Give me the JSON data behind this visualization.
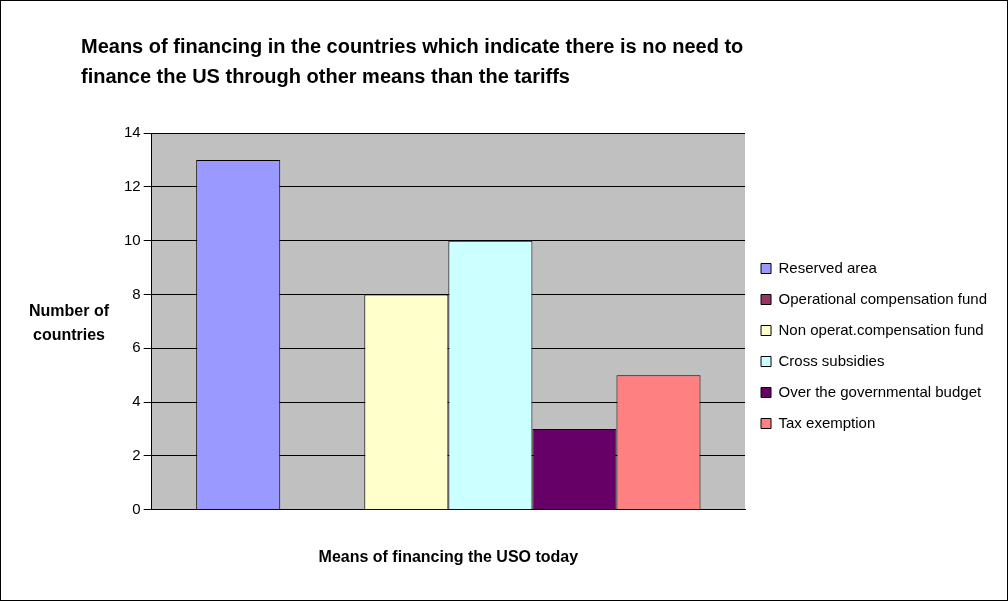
{
  "chart_data": {
    "type": "bar",
    "title": "Means of financing in the countries which indicate there is no need to finance the US through other means than the tariffs",
    "xlabel": "Means of financing the USO today",
    "ylabel": "Number of countries",
    "categories": [
      null
    ],
    "series": [
      {
        "name": "Reserved area",
        "color": "#9999ff",
        "values": [
          13
        ]
      },
      {
        "name": "Operational compensation fund",
        "color": "#993366",
        "values": [
          0
        ]
      },
      {
        "name": "Non operat.compensation fund",
        "color": "#ffffcc",
        "values": [
          8
        ]
      },
      {
        "name": "Cross subsidies",
        "color": "#ccffff",
        "values": [
          10
        ]
      },
      {
        "name": "Over the governmental budget",
        "color": "#660066",
        "values": [
          3
        ]
      },
      {
        "name": "Tax exemption",
        "color": "#ff8080",
        "values": [
          5
        ]
      }
    ],
    "ylim": [
      0,
      14
    ],
    "yticks": [
      0,
      2,
      4,
      6,
      8,
      10,
      12,
      14
    ],
    "grid": "y",
    "legend": "right"
  }
}
